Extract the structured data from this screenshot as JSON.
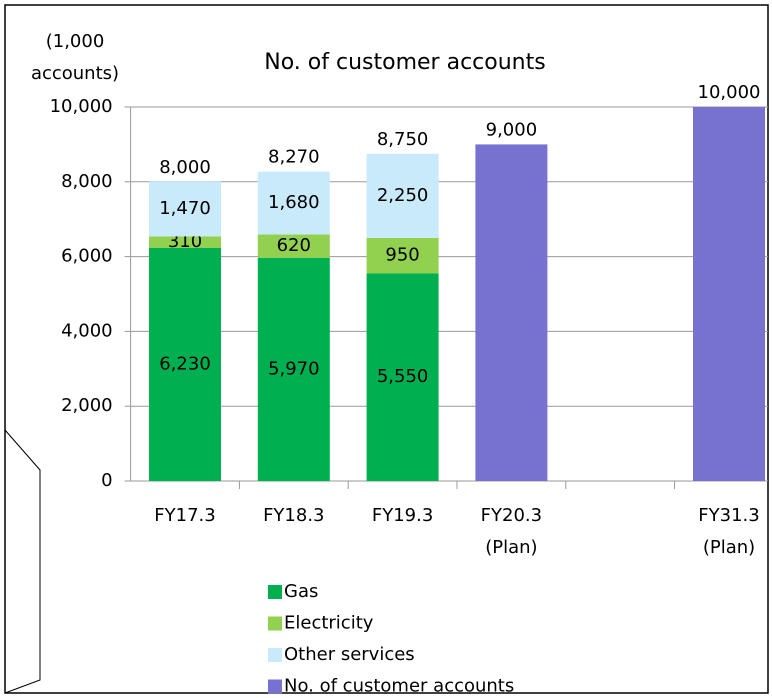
{
  "chart_data": {
    "type": "stacked_bar",
    "title": "No. of customer accounts",
    "y_label": "(1,000\naccounts)",
    "categories": [
      "FY17.3",
      "FY18.3",
      "FY19.3",
      "FY20.3\n(Plan)",
      null,
      "FY31.3\n(Plan)"
    ],
    "series": [
      {
        "name": "Gas",
        "color": "#00b050",
        "values": [
          6230,
          5970,
          5550,
          null,
          null,
          null
        ],
        "value_labels": [
          "6,230",
          "5,970",
          "5,550",
          null,
          null,
          null
        ]
      },
      {
        "name": "Electricity",
        "color": "#92d050",
        "values": [
          310,
          620,
          950,
          null,
          null,
          null
        ],
        "value_labels": [
          "310",
          "620",
          "950",
          null,
          null,
          null
        ]
      },
      {
        "name": "Other services",
        "color": "#c9eafb",
        "values": [
          1470,
          1680,
          2250,
          null,
          null,
          null
        ],
        "value_labels": [
          "1,470",
          "1,680",
          "2,250",
          null,
          null,
          null
        ]
      },
      {
        "name": "No. of customer accounts",
        "color": "#7772cf",
        "values": [
          null,
          null,
          null,
          9000,
          null,
          10000
        ],
        "value_labels": [
          null,
          null,
          null,
          "9,000",
          null,
          "10,000"
        ]
      }
    ],
    "totals": [
      8000,
      8270,
      8750,
      null,
      null,
      null
    ],
    "total_labels": [
      "8,000",
      "8,270",
      "8,750",
      null,
      null,
      null
    ],
    "ylim": [
      0,
      10000
    ],
    "yticks": [
      0,
      {
        "value": 2000,
        "label": "2,000"
      },
      {
        "value": 4000,
        "label": "4,000"
      },
      {
        "value": 6000,
        "label": "6,000"
      },
      {
        "value": 8000,
        "label": "8,000"
      },
      {
        "value": 10000,
        "label": "10,000"
      }
    ],
    "grid": true
  }
}
